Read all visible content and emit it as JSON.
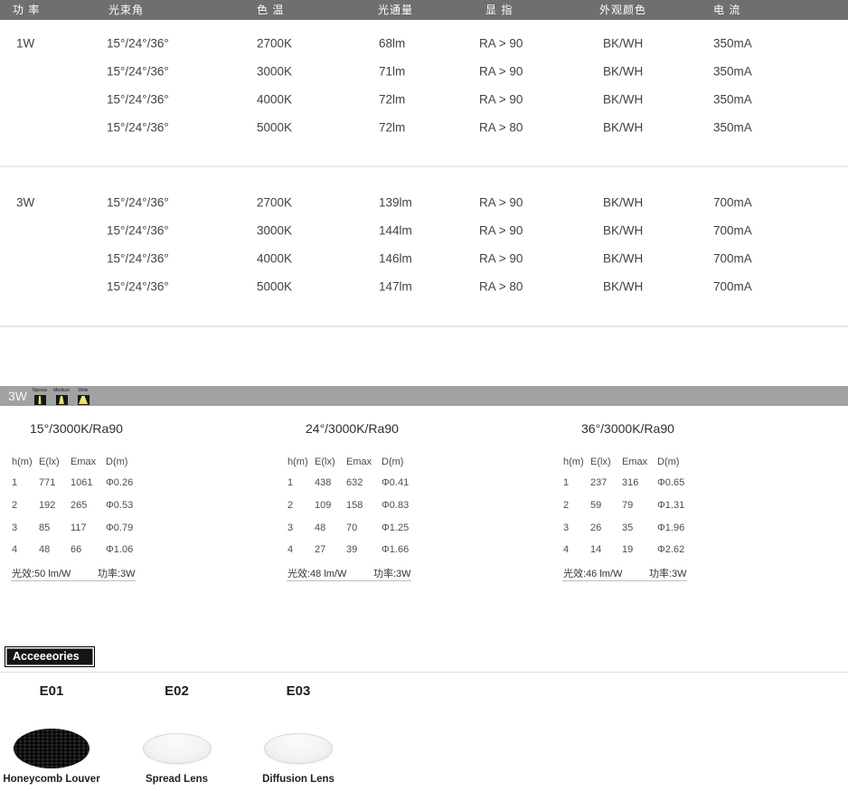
{
  "colors": {
    "header_bar": "#6f6f6f",
    "banner_bar": "#a2a2a2",
    "beam_yellow": "#ece254",
    "accent_black": "#151515"
  },
  "spec": {
    "headers": [
      "功 率",
      "光束角",
      "色 温",
      "光通量",
      "显 指",
      "外观颜色",
      "电 流"
    ],
    "groups": [
      {
        "power": "1W",
        "rows": [
          {
            "beam": "15°/24°/36°",
            "cct": "2700K",
            "flux": "68lm",
            "cri": "RA > 90",
            "color": "BK/WH",
            "current": "350mA"
          },
          {
            "beam": "15°/24°/36°",
            "cct": "3000K",
            "flux": "71lm",
            "cri": "RA > 90",
            "color": "BK/WH",
            "current": "350mA"
          },
          {
            "beam": "15°/24°/36°",
            "cct": "4000K",
            "flux": "72lm",
            "cri": "RA > 90",
            "color": "BK/WH",
            "current": "350mA"
          },
          {
            "beam": "15°/24°/36°",
            "cct": "5000K",
            "flux": "72lm",
            "cri": "RA > 80",
            "color": "BK/WH",
            "current": "350mA"
          }
        ]
      },
      {
        "power": "3W",
        "rows": [
          {
            "beam": "15°/24°/36°",
            "cct": "2700K",
            "flux": "139lm",
            "cri": "RA > 90",
            "color": "BK/WH",
            "current": "700mA"
          },
          {
            "beam": "15°/24°/36°",
            "cct": "3000K",
            "flux": "144lm",
            "cri": "RA > 90",
            "color": "BK/WH",
            "current": "700mA"
          },
          {
            "beam": "15°/24°/36°",
            "cct": "4000K",
            "flux": "146lm",
            "cri": "RA > 90",
            "color": "BK/WH",
            "current": "700mA"
          },
          {
            "beam": "15°/24°/36°",
            "cct": "5000K",
            "flux": "147lm",
            "cri": "RA > 80",
            "color": "BK/WH",
            "current": "700mA"
          }
        ]
      }
    ]
  },
  "banner": {
    "label": "3W",
    "icons": [
      {
        "label": "Narrow"
      },
      {
        "label": "Medium"
      },
      {
        "label": "Wide"
      }
    ]
  },
  "photometric": [
    {
      "title": "15°/3000K/Ra90",
      "headers": [
        "h(m)",
        "E(lx)",
        "Emax",
        "D(m)"
      ],
      "rows": [
        [
          "1",
          "771",
          "1061",
          "Φ0.26"
        ],
        [
          "2",
          "192",
          "265",
          "Φ0.53"
        ],
        [
          "3",
          "85",
          "117",
          "Φ0.79"
        ],
        [
          "4",
          "48",
          "66",
          "Φ1.06"
        ]
      ],
      "efficacy": "光效:50 lm/W",
      "power": "功率:3W"
    },
    {
      "title": "24°/3000K/Ra90",
      "headers": [
        "h(m)",
        "E(lx)",
        "Emax",
        "D(m)"
      ],
      "rows": [
        [
          "1",
          "438",
          "632",
          "Φ0.41"
        ],
        [
          "2",
          "109",
          "158",
          "Φ0.83"
        ],
        [
          "3",
          "48",
          "70",
          "Φ1.25"
        ],
        [
          "4",
          "27",
          "39",
          "Φ1.66"
        ]
      ],
      "efficacy": "光效:48 lm/W",
      "power": "功率:3W"
    },
    {
      "title": "36°/3000K/Ra90",
      "headers": [
        "h(m)",
        "E(lx)",
        "Emax",
        "D(m)"
      ],
      "rows": [
        [
          "1",
          "237",
          "316",
          "Φ0.65"
        ],
        [
          "2",
          "59",
          "79",
          "Φ1.31"
        ],
        [
          "3",
          "26",
          "35",
          "Φ1.96"
        ],
        [
          "4",
          "14",
          "19",
          "Φ2.62"
        ]
      ],
      "efficacy": "光效:46 lm/W",
      "power": "功率:3W"
    }
  ],
  "accessories": {
    "title": "Acceeeories",
    "items": [
      {
        "code": "E01",
        "name": "Honeycomb Louver"
      },
      {
        "code": "E02",
        "name": "Spread Lens"
      },
      {
        "code": "E03",
        "name": "Diffusion Lens"
      }
    ]
  }
}
